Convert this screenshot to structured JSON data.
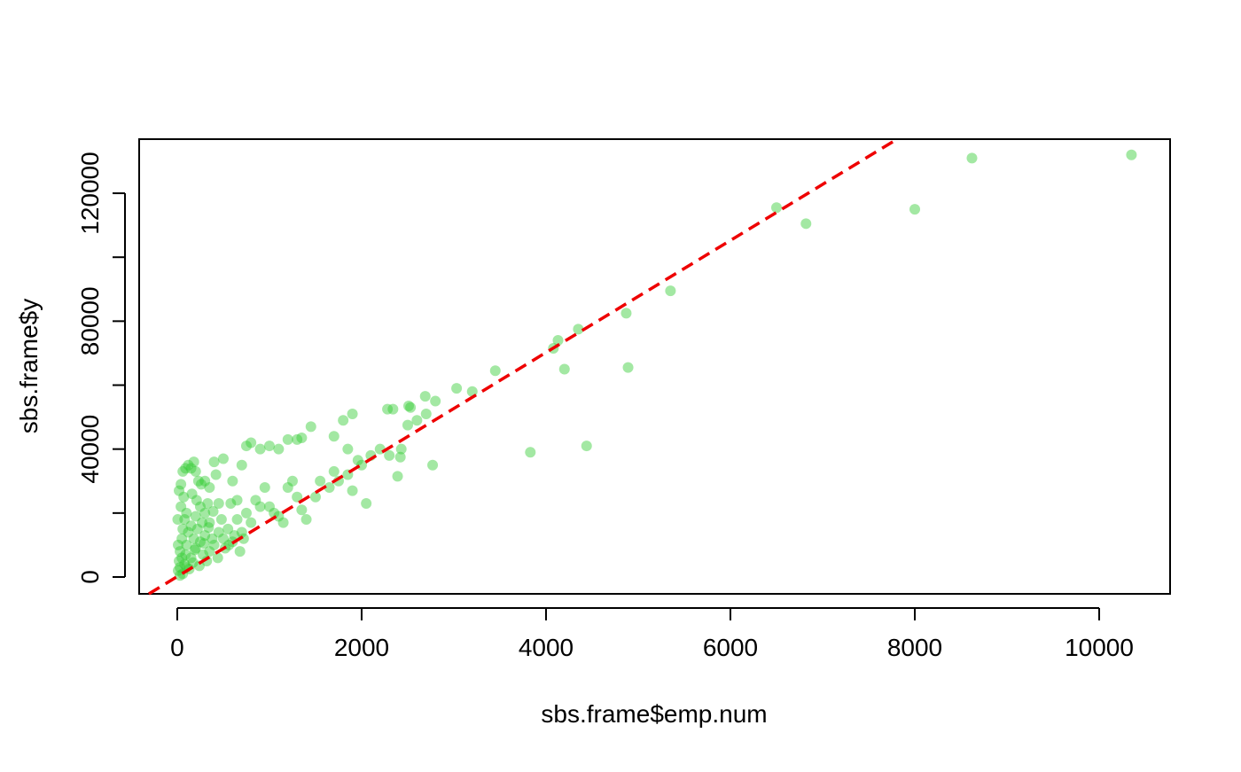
{
  "chart_data": {
    "type": "scatter",
    "xlabel": "sbs.frame$emp.num",
    "ylabel": "sbs.frame$y",
    "xlim": [
      -413,
      10769
    ],
    "ylim": [
      -5266,
      136918
    ],
    "xticks": [
      0,
      2000,
      4000,
      6000,
      8000,
      10000
    ],
    "yticks": [
      0,
      40000,
      80000,
      120000
    ],
    "yminor_ticks": [
      20000,
      60000,
      100000
    ],
    "color": "#32cd32",
    "opacity": 0.45,
    "fit_line": {
      "intercept": 130,
      "slope": 17.52,
      "color": "#ee0000"
    },
    "x": [
      10350,
      8620,
      8000,
      6820,
      6500,
      5350,
      4870,
      4890,
      4350,
      4200,
      4130,
      4080,
      4440,
      3830,
      3450,
      3200,
      3030,
      2800,
      2770,
      2700,
      2690,
      2600,
      2530,
      2500,
      2510,
      2340,
      2280,
      2430,
      2390,
      2420,
      2050,
      1960,
      1900,
      1850,
      1800,
      1700,
      1450,
      1350,
      1300,
      10,
      20,
      30,
      50,
      60,
      80,
      100,
      20,
      40,
      60,
      90,
      120,
      150,
      180,
      200,
      230,
      260,
      300,
      350,
      400,
      420,
      100,
      150,
      200,
      250,
      300,
      350,
      400,
      450,
      500,
      550,
      600,
      650,
      700,
      750,
      800,
      850,
      900,
      950,
      1000,
      1050,
      1100,
      1150,
      1200,
      1250,
      1300,
      1350,
      1400,
      1500,
      1550,
      1650,
      1700,
      1750,
      1850,
      1900,
      2000,
      2100,
      2200,
      2300,
      500,
      600,
      700,
      750,
      800,
      900,
      1000,
      1100,
      1200,
      580,
      650,
      150,
      200,
      250,
      300,
      350,
      100,
      50,
      80,
      120,
      180,
      220,
      280,
      320,
      380,
      440,
      480,
      520,
      560,
      620,
      680,
      720,
      30,
      10,
      5,
      40,
      70,
      160,
      210,
      270,
      330,
      450,
      30,
      60,
      90,
      130,
      170,
      190,
      240,
      290,
      340,
      390
    ],
    "y": [
      132000,
      131000,
      115000,
      110500,
      115500,
      89500,
      82500,
      65500,
      77500,
      65000,
      74000,
      71500,
      41000,
      39000,
      64500,
      58000,
      59000,
      55000,
      35000,
      51000,
      56500,
      49000,
      53000,
      47500,
      53500,
      52500,
      52500,
      40000,
      31500,
      37500,
      23000,
      36500,
      51000,
      40000,
      49000,
      44000,
      47000,
      43500,
      43000,
      2000,
      5000,
      8000,
      12000,
      15000,
      18000,
      20000,
      27000,
      29000,
      33000,
      34000,
      35000,
      34000,
      36000,
      33000,
      30000,
      29000,
      30000,
      28000,
      36000,
      32000,
      3000,
      6000,
      9000,
      11000,
      13000,
      8000,
      10000,
      14000,
      12000,
      15000,
      11000,
      18000,
      14000,
      20000,
      17000,
      24000,
      22000,
      28000,
      22000,
      20000,
      19000,
      17000,
      28000,
      30000,
      25000,
      21000,
      18000,
      25000,
      30000,
      28000,
      33000,
      30000,
      32000,
      27000,
      35000,
      38000,
      40000,
      38000,
      37000,
      30000,
      35000,
      41000,
      42000,
      40000,
      41000,
      40000,
      43000,
      23000,
      24000,
      16000,
      19000,
      22000,
      20000,
      17000,
      10000,
      6000,
      4000,
      14000,
      12000,
      15000,
      7000,
      5000,
      12000,
      6000,
      18000,
      9000,
      10000,
      13000,
      8000,
      12000,
      500,
      10000,
      18000,
      22000,
      25000,
      26000,
      24000,
      17000,
      23000,
      23000,
      3000,
      1000,
      7000,
      2500,
      4500,
      8500,
      3500,
      10500,
      15500,
      20500
    ]
  }
}
